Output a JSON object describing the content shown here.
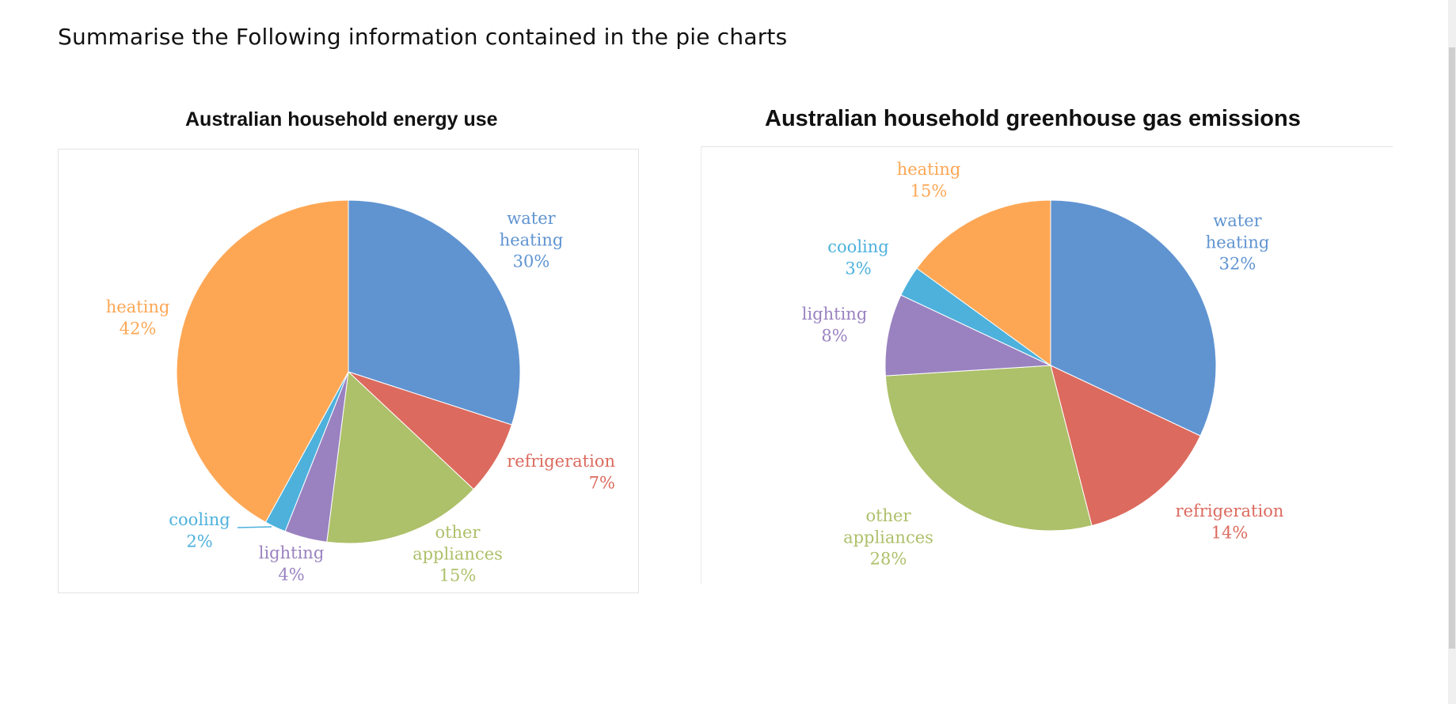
{
  "instruction": "Summarise the Following information contained in the pie charts",
  "chart_data": [
    {
      "type": "pie",
      "title": "Australian household energy use",
      "slices": [
        {
          "label": "water heating",
          "lines": [
            "water",
            "heating"
          ],
          "value": 30,
          "pct": "30%",
          "color": "#6094D1"
        },
        {
          "label": "refrigeration",
          "lines": [
            "refrigeration"
          ],
          "value": 7,
          "pct": "7%",
          "color": "#DC6A5E"
        },
        {
          "label": "other appliances",
          "lines": [
            "other",
            "appliances"
          ],
          "value": 15,
          "pct": "15%",
          "color": "#ADC06A"
        },
        {
          "label": "lighting",
          "lines": [
            "lighting"
          ],
          "value": 4,
          "pct": "4%",
          "color": "#9A82C0"
        },
        {
          "label": "cooling",
          "lines": [
            "cooling"
          ],
          "value": 2,
          "pct": "2%",
          "color": "#4DB1DC"
        },
        {
          "label": "heating",
          "lines": [
            "heating"
          ],
          "value": 42,
          "pct": "42%",
          "color": "#FDA755"
        }
      ]
    },
    {
      "type": "pie",
      "title": "Australian household greenhouse gas emissions",
      "slices": [
        {
          "label": "water heating",
          "lines": [
            "water",
            "heating"
          ],
          "value": 32,
          "pct": "32%",
          "color": "#6094D1"
        },
        {
          "label": "refrigeration",
          "lines": [
            "refrigeration"
          ],
          "value": 14,
          "pct": "14%",
          "color": "#DC6A5E"
        },
        {
          "label": "other appliances",
          "lines": [
            "other",
            "appliances"
          ],
          "value": 28,
          "pct": "28%",
          "color": "#ADC06A"
        },
        {
          "label": "lighting",
          "lines": [
            "lighting"
          ],
          "value": 8,
          "pct": "8%",
          "color": "#9A82C0"
        },
        {
          "label": "cooling",
          "lines": [
            "cooling"
          ],
          "value": 3,
          "pct": "3%",
          "color": "#4DB1DC"
        },
        {
          "label": "heating",
          "lines": [
            "heating"
          ],
          "value": 15,
          "pct": "15%",
          "color": "#FDA755"
        }
      ]
    }
  ]
}
